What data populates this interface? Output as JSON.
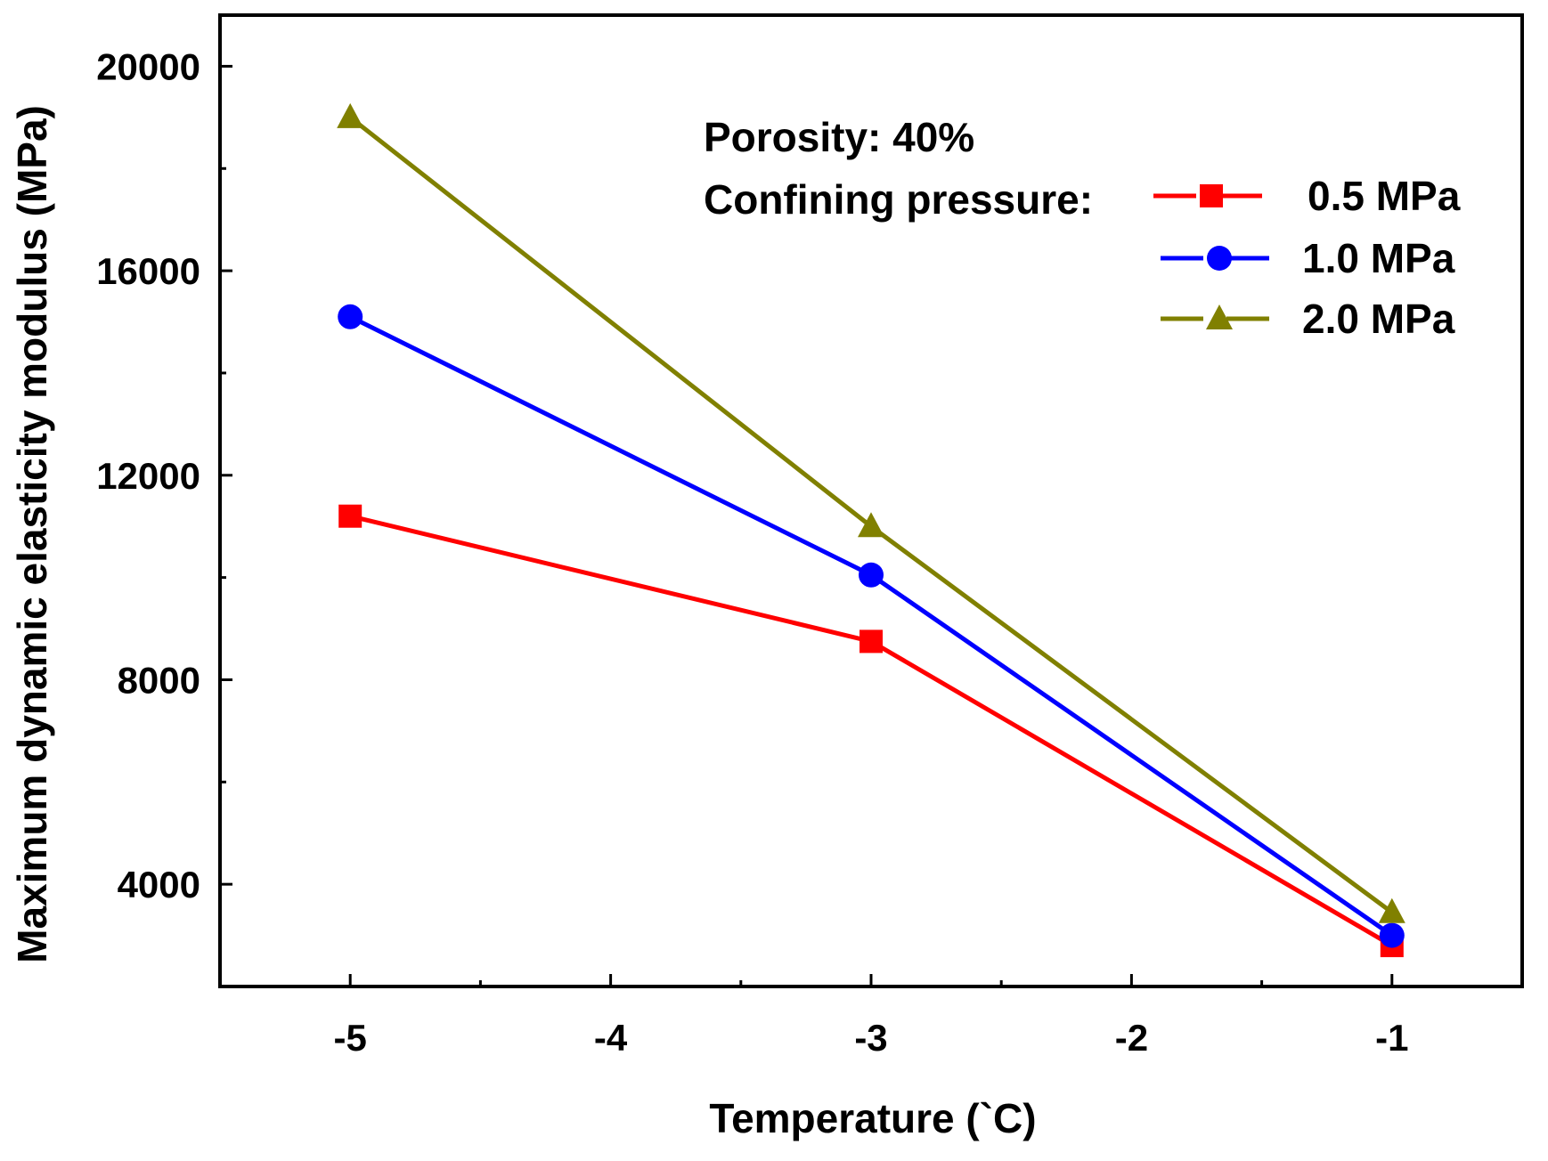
{
  "chart_data": {
    "type": "line",
    "xlabel": "Temperature (`C)",
    "ylabel": "Maximum dynamic elasticity modulus (MPa)",
    "xlim": [
      -5.5,
      -0.5
    ],
    "ylim": [
      2000,
      21000
    ],
    "xticks": [
      -5,
      -4,
      -3,
      -2,
      -1
    ],
    "xtick_labels": [
      "-5",
      "-4",
      "-3",
      "-2",
      "-1"
    ],
    "yticks": [
      4000,
      8000,
      12000,
      16000,
      20000
    ],
    "ytick_labels": [
      "4000",
      "8000",
      "12000",
      "16000",
      "20000"
    ],
    "annotations": [
      "Porosity: 40%",
      "Confining pressure:"
    ],
    "legend_position": "top-right",
    "series": [
      {
        "name": "0.5 MPa",
        "legend_label": "0.5 MPa",
        "color": "#ff0000",
        "marker": "square",
        "x": [
          -5,
          -3,
          -1
        ],
        "y": [
          11200,
          8750,
          2800
        ]
      },
      {
        "name": "1.0 MPa",
        "legend_label": "1.0 MPa",
        "color": "#0000ff",
        "marker": "circle",
        "x": [
          -5,
          -3,
          -1
        ],
        "y": [
          15100,
          10050,
          3000
        ]
      },
      {
        "name": "2.0 MPa",
        "legend_label": "2.0 MPa",
        "color": "#808000",
        "marker": "triangle",
        "x": [
          -5,
          -3,
          -1
        ],
        "y": [
          19000,
          11000,
          3450
        ]
      }
    ]
  }
}
